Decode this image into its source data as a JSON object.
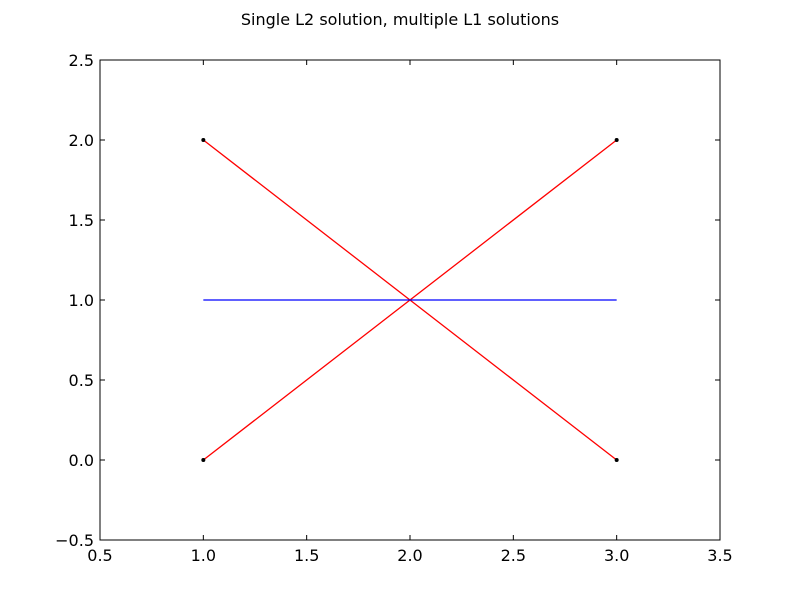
{
  "chart_data": {
    "type": "line",
    "title": "Single L2 solution, multiple L1 solutions",
    "xlabel": "",
    "ylabel": "",
    "xlim": [
      0.5,
      3.5
    ],
    "ylim": [
      -0.5,
      2.5
    ],
    "xticks": [
      "0.5",
      "1.0",
      "1.5",
      "2.0",
      "2.5",
      "3.0",
      "3.5"
    ],
    "yticks": [
      "-0.5",
      "0.0",
      "0.5",
      "1.0",
      "1.5",
      "2.0",
      "2.5"
    ],
    "grid": false,
    "points": [
      {
        "x": 1,
        "y": 2
      },
      {
        "x": 1,
        "y": 0
      },
      {
        "x": 3,
        "y": 2
      },
      {
        "x": 3,
        "y": 0
      }
    ],
    "series": [
      {
        "color": "#ff0000",
        "x": [
          1,
          3
        ],
        "y": [
          2,
          0
        ]
      },
      {
        "color": "#ff0000",
        "x": [
          1,
          3
        ],
        "y": [
          0,
          2
        ]
      },
      {
        "color": "#0000ff",
        "x": [
          1,
          3
        ],
        "y": [
          1,
          1
        ]
      }
    ],
    "point_color": "#000000"
  }
}
